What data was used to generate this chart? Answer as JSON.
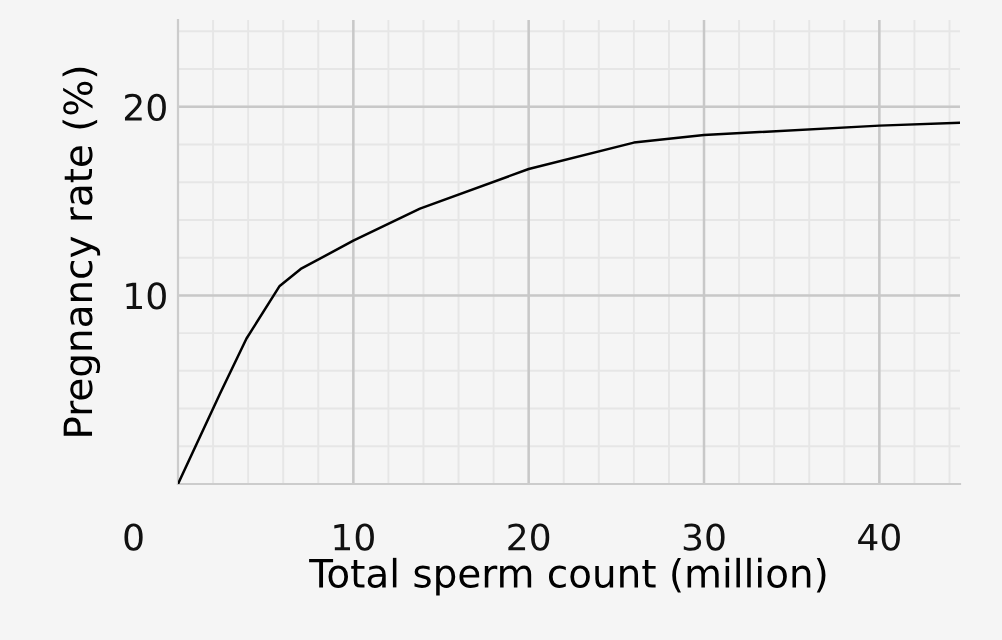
{
  "chart_data": {
    "type": "line",
    "xlabel": "Total sperm count (million)",
    "ylabel": "Pregnancy rate (%)",
    "x": [
      0,
      2.4,
      3.9,
      5.8,
      7.0,
      10,
      13.8,
      20,
      26,
      30,
      40,
      44.6
    ],
    "series": [
      {
        "color": "#000000",
        "values": [
          0,
          4.8,
          7.7,
          10.5,
          11.4,
          12.9,
          14.6,
          16.7,
          18.1,
          18.5,
          19.0,
          19.15
        ]
      }
    ],
    "xlim": [
      0,
      44.6
    ],
    "ylim": [
      0,
      24.6
    ],
    "xticks": [
      10,
      20,
      30,
      40
    ],
    "yticks": [
      10,
      20
    ],
    "annotations": [
      "0"
    ],
    "grid": true,
    "marker": "none",
    "line_style": "solid"
  }
}
